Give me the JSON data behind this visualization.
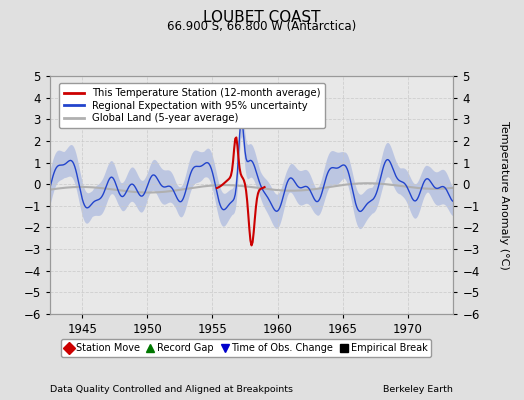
{
  "title": "LOUBET COAST",
  "subtitle": "66.900 S, 66.800 W (Antarctica)",
  "ylabel": "Temperature Anomaly (°C)",
  "xlabel_left": "Data Quality Controlled and Aligned at Breakpoints",
  "xlabel_right": "Berkeley Earth",
  "ylim": [
    -6,
    5
  ],
  "yticks": [
    -6,
    -5,
    -4,
    -3,
    -2,
    -1,
    0,
    1,
    2,
    3,
    4,
    5
  ],
  "xlim": [
    1942.5,
    1973.5
  ],
  "xticks": [
    1945,
    1950,
    1955,
    1960,
    1965,
    1970
  ],
  "bg_color": "#e0e0e0",
  "plot_bg_color": "#e8e8e8",
  "grid_color": "#c8c8c8",
  "regional_color": "#2244cc",
  "regional_fill_color": "#99aadd",
  "global_land_color": "#b0b0b0",
  "station_color": "#cc0000",
  "legend_items": [
    {
      "label": "This Temperature Station (12-month average)",
      "color": "#cc0000"
    },
    {
      "label": "Regional Expectation with 95% uncertainty",
      "color": "#2244cc"
    },
    {
      "label": "Global Land (5-year average)",
      "color": "#b0b0b0"
    }
  ],
  "bottom_legend": [
    {
      "label": "Station Move",
      "color": "#cc0000",
      "marker": "D"
    },
    {
      "label": "Record Gap",
      "color": "#007700",
      "marker": "^"
    },
    {
      "label": "Time of Obs. Change",
      "color": "#0000cc",
      "marker": "v"
    },
    {
      "label": "Empirical Break",
      "color": "#000000",
      "marker": "s"
    }
  ]
}
